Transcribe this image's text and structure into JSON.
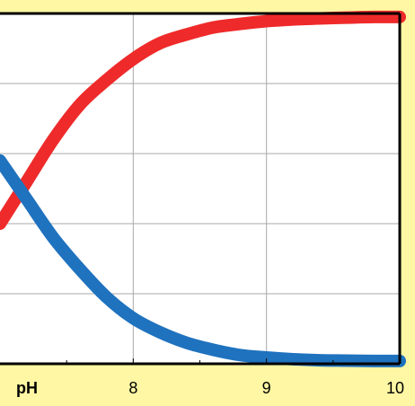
{
  "colors": {
    "background": "#FFF7A3",
    "plot_background": "#FFFFFF",
    "grid": "#A9A9A9",
    "frame": "#000000",
    "rising_series": "#EF2A2A",
    "falling_series": "#1F72BE"
  },
  "chart_data": {
    "type": "line",
    "title": "",
    "xlabel": "pH",
    "ylabel": "",
    "xlim": [
      7.0,
      10.0
    ],
    "ylim": [
      0,
      1
    ],
    "grid": true,
    "legend": "none",
    "x_tick_labels": [
      {
        "x": 8,
        "label": "8"
      },
      {
        "x": 9,
        "label": "9"
      },
      {
        "x": 10,
        "label": "10"
      }
    ],
    "x_gridlines": [
      8,
      9
    ],
    "y_gridlines": [
      0.2,
      0.4,
      0.6,
      0.8
    ],
    "series": [
      {
        "x": [
          7.0,
          7.2,
          7.4,
          7.6,
          7.8,
          8.0,
          8.2,
          8.4,
          8.6,
          8.8,
          9.0,
          9.2,
          9.4,
          9.6,
          9.8,
          10.0
        ],
        "values": [
          0.4,
          0.52,
          0.64,
          0.74,
          0.81,
          0.87,
          0.915,
          0.94,
          0.96,
          0.97,
          0.978,
          0.983,
          0.986,
          0.988,
          0.99,
          0.99
        ],
        "color": "#EF2A2A"
      },
      {
        "x": [
          7.0,
          7.2,
          7.4,
          7.6,
          7.8,
          8.0,
          8.2,
          8.4,
          8.6,
          8.8,
          9.0,
          9.2,
          9.4,
          9.6,
          9.8,
          10.0
        ],
        "values": [
          0.58,
          0.47,
          0.36,
          0.27,
          0.19,
          0.13,
          0.09,
          0.06,
          0.04,
          0.025,
          0.018,
          0.013,
          0.01,
          0.009,
          0.008,
          0.008
        ],
        "color": "#1F72BE"
      }
    ]
  }
}
